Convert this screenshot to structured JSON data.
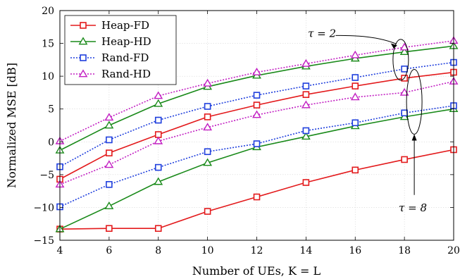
{
  "chart_data": {
    "type": "line",
    "xlabel": "Number of UEs, K = L",
    "ylabel": "Normalized MSE [dB]",
    "xlim": [
      4,
      20
    ],
    "ylim": [
      -15,
      20
    ],
    "xticks": [
      4,
      6,
      8,
      10,
      12,
      14,
      16,
      18,
      20
    ],
    "yticks": [
      -15,
      -10,
      -5,
      0,
      5,
      10,
      15,
      20
    ],
    "grid": true,
    "legend_position": "top-left",
    "x": [
      4,
      6,
      8,
      10,
      12,
      14,
      16,
      18,
      20
    ],
    "groups": [
      {
        "annotation": "τ = 2",
        "series": [
          {
            "name": "Heap-FD",
            "color": "#e31a1c",
            "style": "solid",
            "marker": "square",
            "values": [
              -5.7,
              -1.7,
              1.1,
              3.8,
              5.6,
              7.2,
              8.5,
              9.7,
              10.6
            ]
          },
          {
            "name": "Heap-HD",
            "color": "#1a8a1a",
            "style": "solid",
            "marker": "triangle",
            "values": [
              -1.3,
              2.5,
              5.8,
              8.4,
              10.1,
              11.5,
              12.7,
              13.7,
              14.6
            ]
          },
          {
            "name": "Rand-FD",
            "color": "#1f3fdd",
            "style": "dotted",
            "marker": "square",
            "values": [
              -3.8,
              0.3,
              3.3,
              5.4,
              7.1,
              8.5,
              9.8,
              11.1,
              12.1
            ]
          },
          {
            "name": "Rand-HD",
            "color": "#c21fc2",
            "style": "dotted",
            "marker": "triangle",
            "values": [
              0.1,
              3.7,
              7.0,
              8.9,
              10.6,
              11.9,
              13.2,
              14.4,
              15.4
            ]
          }
        ]
      },
      {
        "annotation": "τ = 8",
        "series": [
          {
            "name": "Heap-FD",
            "color": "#e31a1c",
            "style": "solid",
            "marker": "square",
            "values": [
              -13.3,
              -13.2,
              -13.2,
              -10.6,
              -8.4,
              -6.2,
              -4.3,
              -2.7,
              -1.2
            ]
          },
          {
            "name": "Heap-HD",
            "color": "#1a8a1a",
            "style": "solid",
            "marker": "triangle",
            "values": [
              -13.3,
              -9.8,
              -6.1,
              -3.2,
              -0.8,
              0.8,
              2.4,
              3.8,
              5.0
            ]
          },
          {
            "name": "Rand-FD",
            "color": "#1f3fdd",
            "style": "dotted",
            "marker": "square",
            "values": [
              -9.9,
              -6.5,
              -3.9,
              -1.5,
              -0.3,
              1.7,
              2.9,
              4.4,
              5.5
            ]
          },
          {
            "name": "Rand-HD",
            "color": "#c21fc2",
            "style": "dotted",
            "marker": "triangle",
            "values": [
              -6.5,
              -3.5,
              0.1,
              2.2,
              4.1,
              5.6,
              6.8,
              7.5,
              9.2
            ]
          }
        ]
      }
    ]
  }
}
